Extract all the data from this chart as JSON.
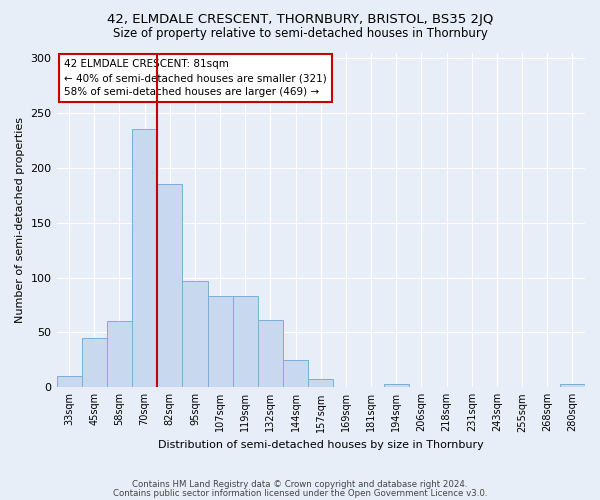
{
  "title": "42, ELMDALE CRESCENT, THORNBURY, BRISTOL, BS35 2JQ",
  "subtitle": "Size of property relative to semi-detached houses in Thornbury",
  "xlabel": "Distribution of semi-detached houses by size in Thornbury",
  "ylabel": "Number of semi-detached properties",
  "categories": [
    "33sqm",
    "45sqm",
    "58sqm",
    "70sqm",
    "82sqm",
    "95sqm",
    "107sqm",
    "119sqm",
    "132sqm",
    "144sqm",
    "157sqm",
    "169sqm",
    "181sqm",
    "194sqm",
    "206sqm",
    "218sqm",
    "231sqm",
    "243sqm",
    "255sqm",
    "268sqm",
    "280sqm"
  ],
  "values": [
    10,
    45,
    60,
    235,
    185,
    97,
    83,
    83,
    61,
    25,
    8,
    0,
    0,
    3,
    0,
    0,
    0,
    0,
    0,
    0,
    3
  ],
  "bar_color": "#c8d8ee",
  "bar_edge_color": "#7aaed6",
  "property_line_index": 4,
  "property_sqm": 81,
  "annotation_title": "42 ELMDALE CRESCENT: 81sqm",
  "annotation_line1": "← 40% of semi-detached houses are smaller (321)",
  "annotation_line2": "58% of semi-detached houses are larger (469) →",
  "annotation_box_color": "#ffffff",
  "annotation_box_edge_color": "#cc0000",
  "vline_color": "#cc0000",
  "ylim": [
    0,
    305
  ],
  "yticks": [
    0,
    50,
    100,
    150,
    200,
    250,
    300
  ],
  "background_color": "#e8eef8",
  "grid_color": "#ffffff",
  "footer_line1": "Contains HM Land Registry data © Crown copyright and database right 2024.",
  "footer_line2": "Contains public sector information licensed under the Open Government Licence v3.0."
}
